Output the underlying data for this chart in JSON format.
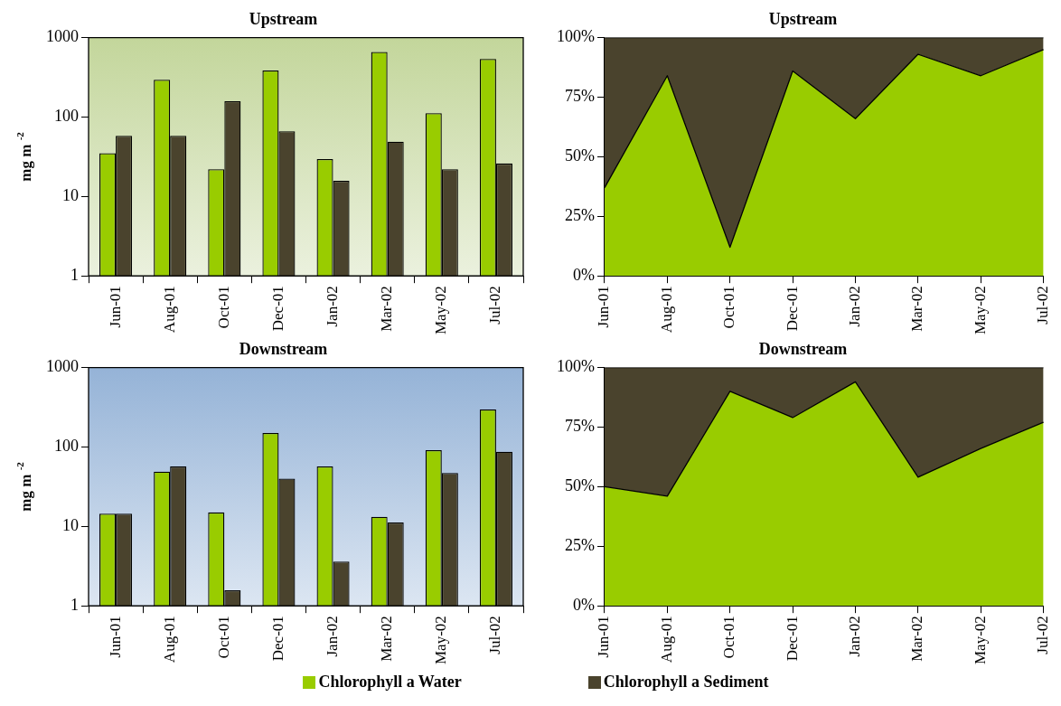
{
  "chart_data": [
    {
      "type": "bar",
      "title": "Upstream",
      "ylabel": "mg m $^{-2}$",
      "categories": [
        "Jun-01",
        "Aug-01",
        "Oct-01",
        "Dec-01",
        "Jan-02",
        "Mar-02",
        "May-02",
        "Jul-02"
      ],
      "log": "y",
      "ylim": [
        1,
        1000
      ],
      "yticks": [
        1,
        10,
        100,
        1000
      ],
      "grid": false,
      "legend": "bottom",
      "series": [
        {
          "name": "Chlorophyll a Water",
          "color": "#99cc00",
          "values": [
            35,
            295,
            22,
            385,
            29.5,
            660,
            112,
            537
          ]
        },
        {
          "name": "Chlorophyll a Sediment",
          "color": "#4a432d",
          "values": [
            58,
            58,
            158,
            66,
            15.7,
            49,
            22,
            26
          ]
        }
      ]
    },
    {
      "type": "area",
      "title": "Upstream",
      "categories": [
        "Jun-01",
        "Aug-01",
        "Oct-01",
        "Dec-01",
        "Jan-02",
        "Mar-02",
        "May-02",
        "Jul-02"
      ],
      "stacked": true,
      "ylim": [
        0,
        100
      ],
      "yticks": [
        {
          "value": 0,
          "label": "0%"
        },
        {
          "value": 25,
          "label": "25%"
        },
        {
          "value": 50,
          "label": "50%"
        },
        {
          "value": 75,
          "label": "75%"
        },
        {
          "value": 100,
          "label": "100%"
        }
      ],
      "grid": false,
      "series": [
        {
          "color": "#99cc00",
          "values": [
            37,
            84,
            12,
            86,
            66,
            93,
            84,
            95
          ]
        },
        {
          "color": "#4a432d",
          "values": [
            63,
            16,
            88,
            14,
            34,
            7,
            16,
            5
          ]
        }
      ]
    },
    {
      "type": "bar",
      "title": "Downstream",
      "ylabel": "mg m $^{-2}$",
      "categories": [
        "Jun-01",
        "Aug-01",
        "Oct-01",
        "Dec-01",
        "Jan-02",
        "Mar-02",
        "May-02",
        "Jul-02"
      ],
      "log": "y",
      "ylim": [
        1,
        1000
      ],
      "yticks": [
        1,
        10,
        100,
        1000
      ],
      "grid": false,
      "series": [
        {
          "color": "#99cc00",
          "values": [
            14.5,
            49,
            15,
            150,
            57,
            13.2,
            91,
            297
          ]
        },
        {
          "color": "#4a432d",
          "values": [
            14.5,
            57,
            1.57,
            40,
            3.6,
            11.2,
            47,
            87
          ]
        }
      ]
    },
    {
      "type": "area",
      "title": "Downstream",
      "categories": [
        "Jun-01",
        "Aug-01",
        "Oct-01",
        "Dec-01",
        "Jan-02",
        "Mar-02",
        "May-02",
        "Jul-02"
      ],
      "stacked": true,
      "ylim": [
        0,
        100
      ],
      "yticks": [
        {
          "value": 0,
          "label": "0%"
        },
        {
          "value": 25,
          "label": "25%"
        },
        {
          "value": 50,
          "label": "50%"
        },
        {
          "value": 75,
          "label": "75%"
        },
        {
          "value": 100,
          "label": "100%"
        }
      ],
      "grid": false,
      "series": [
        {
          "color": "#99cc00",
          "values": [
            50,
            46,
            90,
            79,
            94,
            54,
            66,
            77
          ]
        },
        {
          "color": "#4a432d",
          "values": [
            50,
            54,
            10,
            21,
            6,
            46,
            34,
            23
          ]
        }
      ]
    }
  ]
}
